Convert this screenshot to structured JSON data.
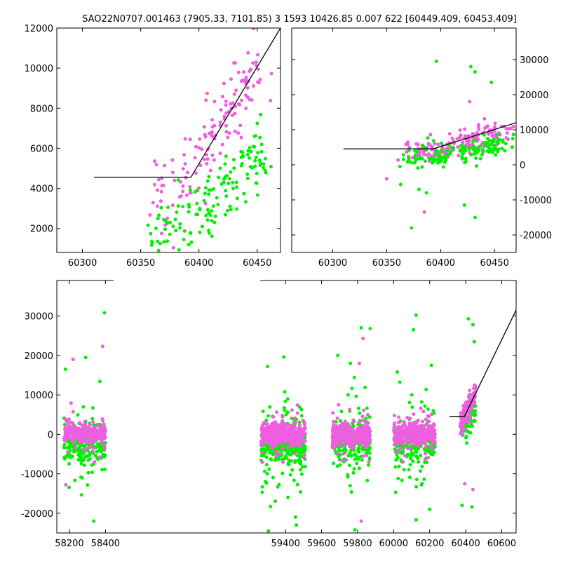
{
  "figure": {
    "title": "SAO22N0707.001463 (7905.33, 7101.85)  3 1593 10426.85 0.007 622 [60449.409, 60453.409]"
  },
  "colors": {
    "series_a": "#ee5ee0",
    "series_b": "#00f000",
    "fit": "#000000"
  },
  "chart_data": [
    {
      "id": "top-left",
      "type": "scatter",
      "xlim": [
        60278,
        60470
      ],
      "ylim": [
        800,
        12000
      ],
      "xticks": [
        60300,
        60350,
        60400,
        60450
      ],
      "yticks": [
        2000,
        4000,
        6000,
        8000,
        10000,
        12000
      ],
      "ytick_side": "left",
      "fit_line": [
        [
          60310,
          4550
        ],
        [
          60393,
          4550
        ],
        [
          60470,
          12000
        ]
      ],
      "series": [
        {
          "color": "series_a",
          "count": 140,
          "centers": [
            [
              60370,
              3600
            ],
            [
              60390,
              5000
            ],
            [
              60410,
              6500
            ],
            [
              60425,
              7800
            ],
            [
              60440,
              9000
            ],
            [
              60450,
              10500
            ]
          ],
          "spread": [
            7,
            1000
          ]
        },
        {
          "color": "series_b",
          "count": 150,
          "centers": [
            [
              60370,
              2000
            ],
            [
              60390,
              2400
            ],
            [
              60410,
              3000
            ],
            [
              60425,
              4000
            ],
            [
              60440,
              4800
            ],
            [
              60450,
              5500
            ]
          ],
          "spread": [
            7,
            900
          ]
        }
      ]
    },
    {
      "id": "top-right",
      "type": "scatter",
      "xlim": [
        60262,
        60470
      ],
      "ylim": [
        -25000,
        39000
      ],
      "xticks": [
        60300,
        60350,
        60400,
        60450
      ],
      "yticks": [
        -20000,
        -10000,
        0,
        10000,
        20000,
        30000
      ],
      "ytick_side": "right",
      "fit_line": [
        [
          60310,
          4550
        ],
        [
          60393,
          4550
        ],
        [
          60470,
          12000
        ]
      ],
      "series": [
        {
          "color": "series_a",
          "count": 170,
          "centers": [
            [
              60380,
              3500
            ],
            [
              60400,
              4500
            ],
            [
              60420,
              6000
            ],
            [
              60435,
              7500
            ],
            [
              60450,
              9500
            ]
          ],
          "spread": [
            8,
            1500
          ]
        },
        {
          "color": "series_b",
          "count": 150,
          "centers": [
            [
              60380,
              2000
            ],
            [
              60400,
              2500
            ],
            [
              60420,
              3500
            ],
            [
              60435,
              4500
            ],
            [
              60450,
              5500
            ]
          ],
          "spread": [
            8,
            1800
          ]
        }
      ],
      "outliers": {
        "series_b": [
          [
            60396,
            29500
          ],
          [
            60428,
            28000
          ],
          [
            60432,
            26500
          ],
          [
            60447,
            23500
          ],
          [
            60363,
            -5600
          ],
          [
            60387,
            -8000
          ],
          [
            60422,
            -11500
          ],
          [
            60373,
            -18000
          ],
          [
            60432,
            -15000
          ],
          [
            60380,
            -7000
          ]
        ],
        "series_a": [
          [
            60427,
            18000
          ],
          [
            60385,
            -13500
          ],
          [
            60350,
            -4000
          ]
        ]
      }
    },
    {
      "id": "bottom",
      "type": "scatter",
      "xlim": [
        58130,
        60680
      ],
      "ylim": [
        -25000,
        39000
      ],
      "xticks": [
        58200,
        58400,
        59400,
        59600,
        59800,
        60000,
        60200,
        60400,
        60600
      ],
      "yticks": [
        -20000,
        -10000,
        0,
        10000,
        20000,
        30000
      ],
      "ytick_side": "left",
      "axis_break_x": [
        58445,
        59260
      ],
      "fit_line": [
        [
          60310,
          4550
        ],
        [
          60393,
          4550
        ],
        [
          60680,
          31500
        ]
      ],
      "clusters": [
        {
          "x": [
            58170,
            58400
          ],
          "a": 260,
          "b": 220
        },
        {
          "x": [
            59265,
            59510
          ],
          "a": 520,
          "b": 380
        },
        {
          "x": [
            59660,
            59870
          ],
          "a": 360,
          "b": 190
        },
        {
          "x": [
            60000,
            60230
          ],
          "a": 360,
          "b": 190
        },
        {
          "x": [
            60370,
            60455
          ],
          "a": 160,
          "b": 100,
          "rising": true
        }
      ],
      "outliers": {
        "series_b": [
          [
            58178,
            16500
          ],
          [
            58290,
            19500
          ],
          [
            58395,
            30800
          ],
          [
            59300,
            17200
          ],
          [
            59390,
            19600
          ],
          [
            59690,
            20000
          ],
          [
            59760,
            18000
          ],
          [
            59820,
            27000
          ],
          [
            59870,
            26800
          ],
          [
            60020,
            15800
          ],
          [
            60110,
            26500
          ],
          [
            60125,
            30200
          ],
          [
            60210,
            17500
          ],
          [
            60415,
            29300
          ],
          [
            60440,
            27800
          ],
          [
            60448,
            23500
          ],
          [
            58335,
            -22000
          ],
          [
            59305,
            -24500
          ],
          [
            59460,
            -23000
          ],
          [
            59455,
            -21000
          ],
          [
            59785,
            -24200
          ],
          [
            60125,
            -21700
          ],
          [
            60200,
            -19000
          ],
          [
            60380,
            -18000
          ],
          [
            60435,
            -18400
          ]
        ],
        "series_a": [
          [
            58385,
            22300
          ],
          [
            58220,
            19000
          ],
          [
            59830,
            24300
          ],
          [
            59810,
            18000
          ],
          [
            58180,
            -12800
          ],
          [
            59820,
            -22000
          ],
          [
            60440,
            -14000
          ],
          [
            60395,
            -12500
          ]
        ]
      }
    }
  ]
}
